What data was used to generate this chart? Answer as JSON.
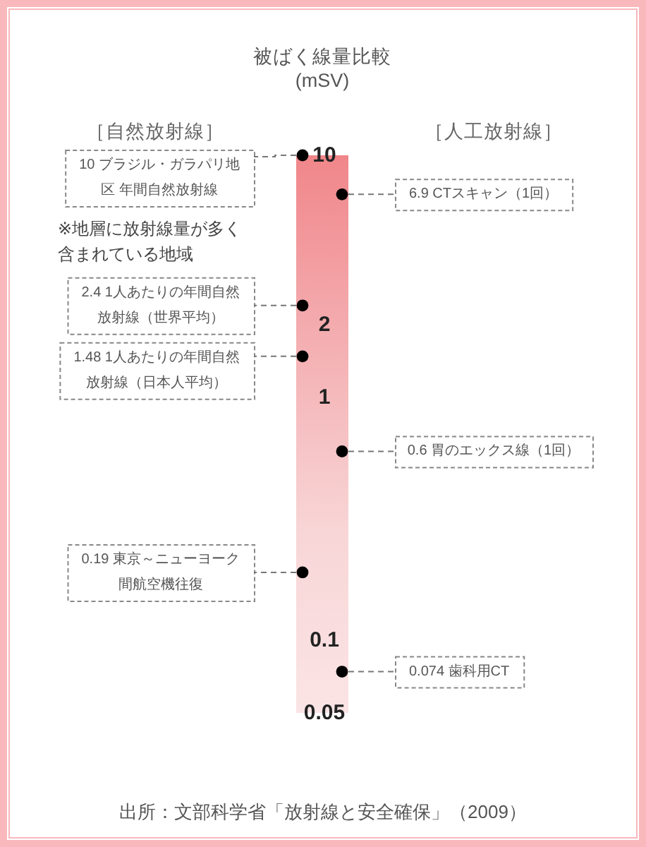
{
  "chart_data": {
    "type": "scatter",
    "title": "被ばく線量比較",
    "ylabel": "(mSV)",
    "categories": [
      "［自然放射線］",
      "［人工放射線］"
    ],
    "log": "y",
    "ylim": [
      0.05,
      10
    ],
    "yticks": [
      10,
      2,
      1,
      0.1,
      0.05
    ],
    "marker": "circle",
    "bands": [
      {
        "axis": "y",
        "from": 0.05,
        "to": 10
      }
    ],
    "series": [
      {
        "color": "#000000",
        "x": [
          "［自然放射線］",
          "［人工放射線］",
          "［自然放射線］",
          "［自然放射線］",
          "［人工放射線］",
          "［自然放射線］",
          "［人工放射線］"
        ],
        "values": [
          10,
          6.9,
          2.4,
          1.48,
          0.6,
          0.19,
          0.074
        ],
        "value_labels": [
          "10 ブラジル・ガラパリ地区 年間自然放射線",
          "6.9 CTスキャン（1回）",
          "2.4 1人あたりの年間自然放射線（世界平均）",
          "1.48 1人あたりの年間自然放射線（日本人平均）",
          "0.6 胃のエックス線（1回）",
          "0.19 東京～ニューヨーク間航空機往復",
          "0.074 歯科用CT"
        ]
      }
    ],
    "annotations": [
      "※地層に放射線量が多く含まれている地域",
      "出所：文部科学省「放射線と安全確保」（2009）"
    ]
  }
}
